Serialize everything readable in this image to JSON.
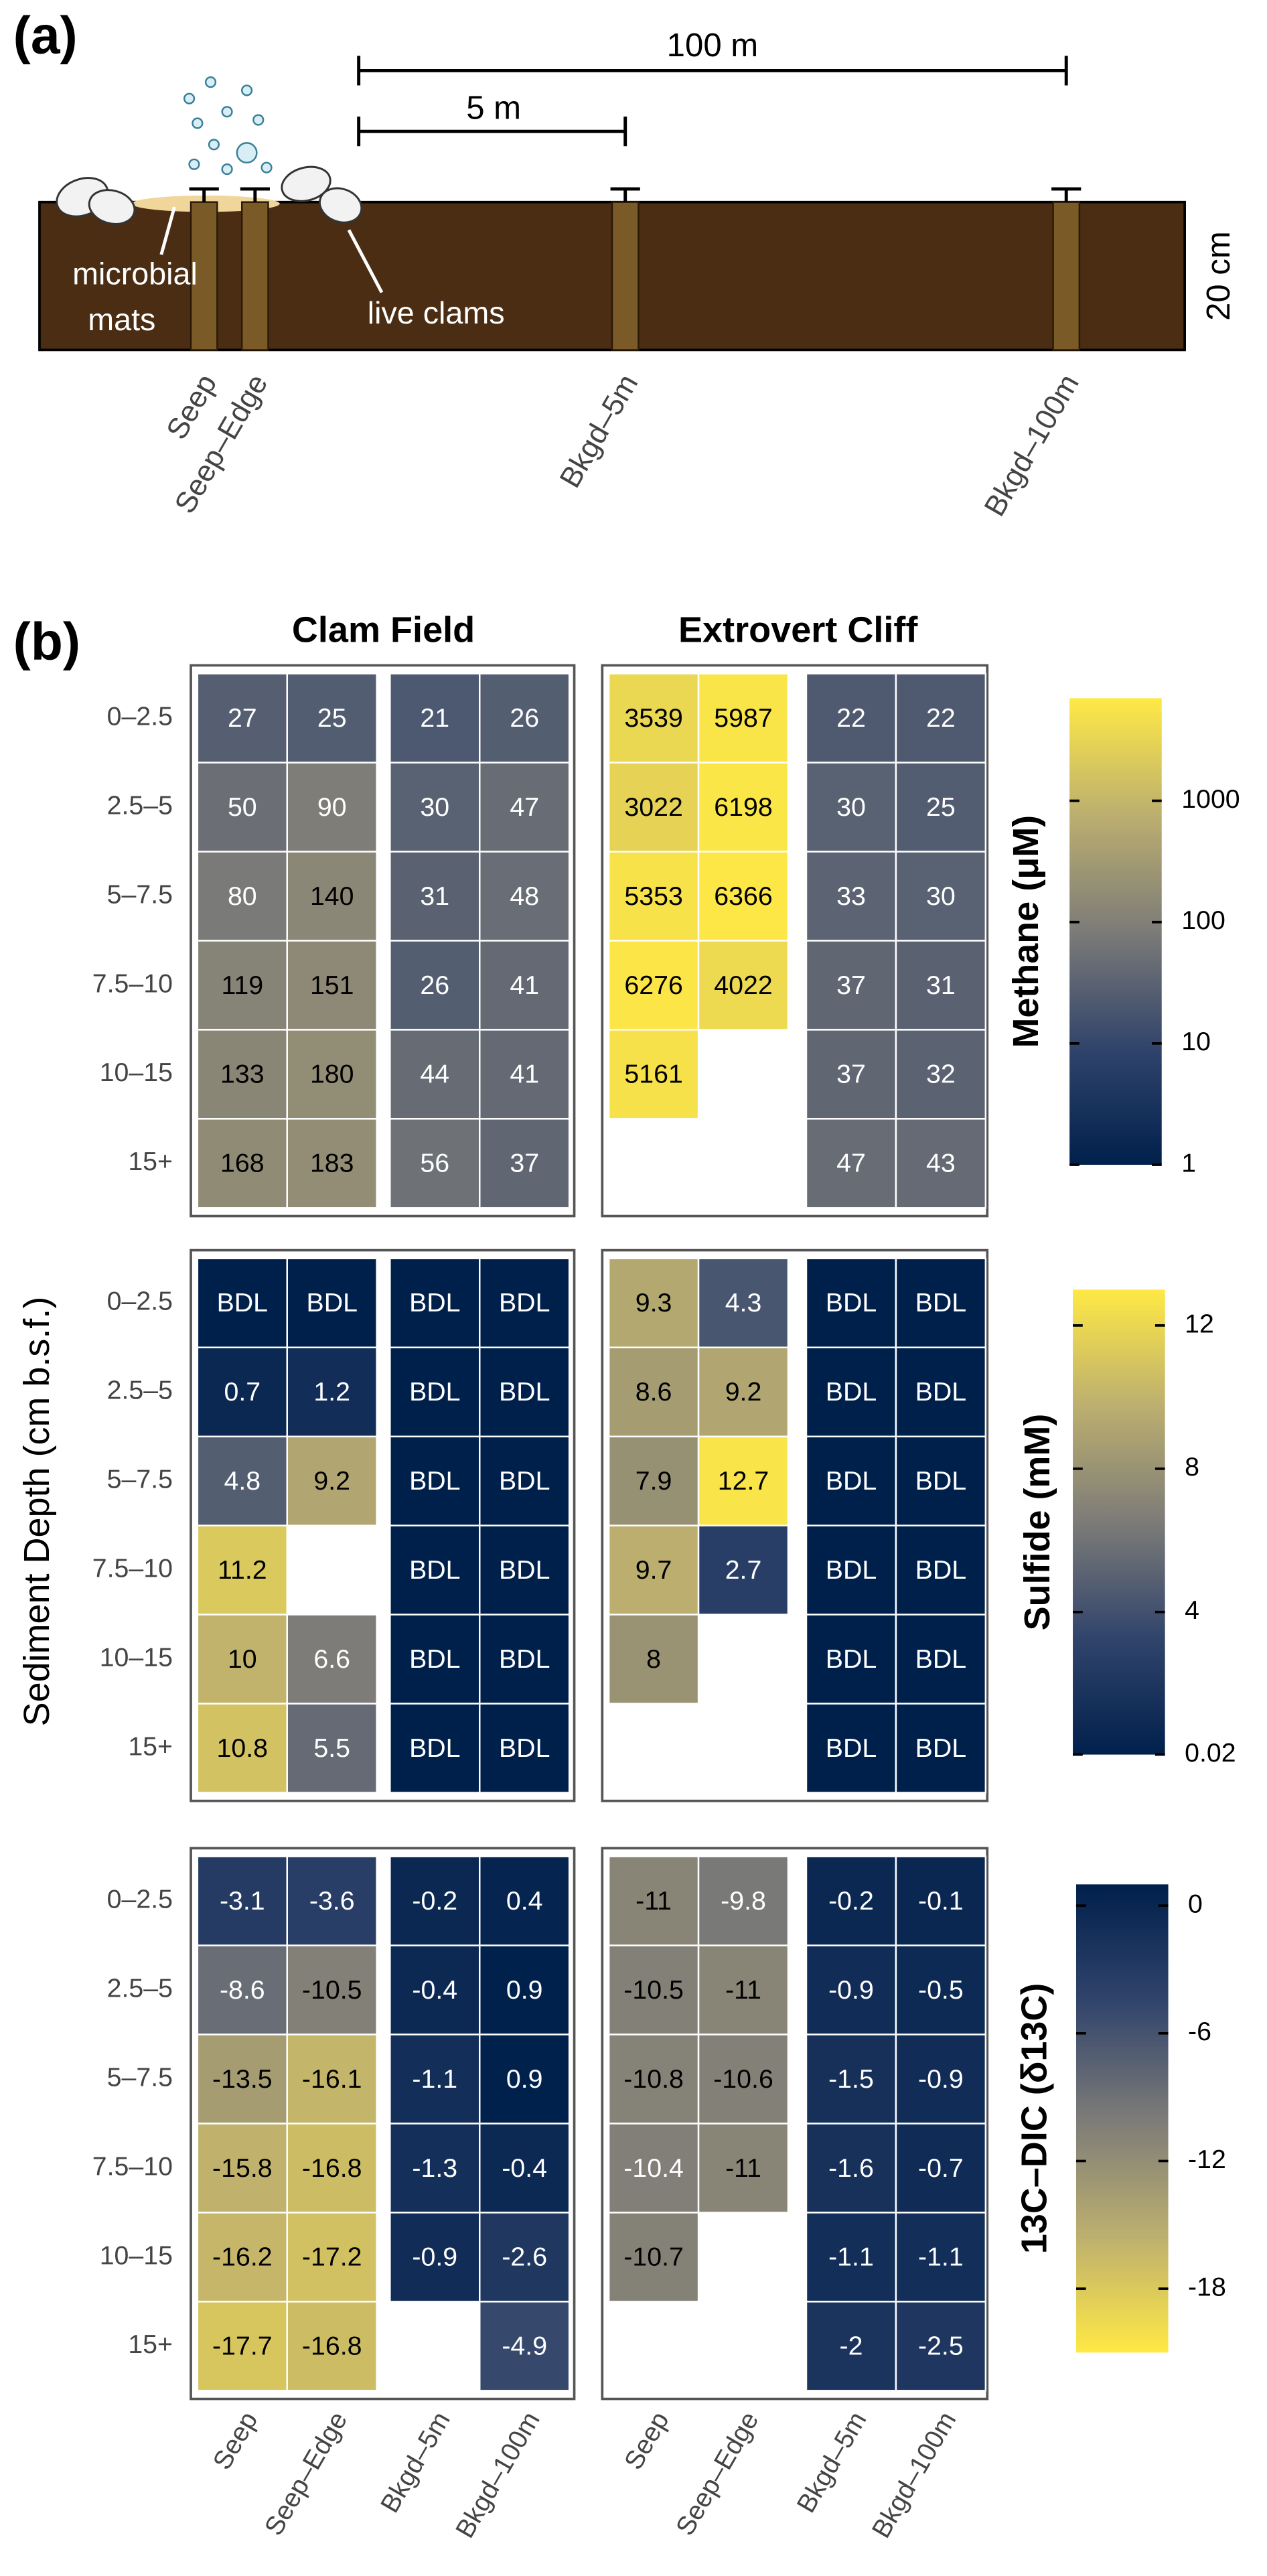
{
  "panel_a": {
    "label": "(a)",
    "scale_bars": [
      "100 m",
      "5 m"
    ],
    "depth": "20 cm",
    "mats": [
      "microbial",
      "mats"
    ],
    "clams": "live clams",
    "sites": [
      "Seep",
      "Seep–Edge",
      "Bkgd–5m",
      "Bkgd–100m"
    ]
  },
  "panel_b": {
    "label": "(b)",
    "y_label": "Sediment Depth (cm b.s.f.)",
    "groups": [
      "Clam Field",
      "Extrovert Cliff"
    ],
    "rows": [
      "0–2.5",
      "2.5–5",
      "5–7.5",
      "7.5–10",
      "10–15",
      "15+"
    ],
    "columns": [
      "Seep",
      "Seep–Edge",
      "Bkgd–5m",
      "Bkgd–100m"
    ]
  },
  "chart_data": [
    {
      "type": "heatmap",
      "colorbar_label": "Methane (μM)",
      "log_scale": true,
      "clim": [
        1,
        7000
      ],
      "cticks": [
        1,
        10,
        100,
        1000
      ],
      "colors": [
        "#00204c",
        "#31446b",
        "#7c7b78",
        "#bcaf6f",
        "#ffe945"
      ],
      "values": [
        [
          [
            27,
            25,
            21,
            26
          ],
          [
            50,
            90,
            30,
            47
          ],
          [
            80,
            140,
            31,
            48
          ],
          [
            119,
            151,
            26,
            41
          ],
          [
            133,
            180,
            44,
            41
          ],
          [
            168,
            183,
            56,
            37
          ]
        ],
        [
          [
            3539,
            5987,
            22,
            22
          ],
          [
            3022,
            6198,
            30,
            25
          ],
          [
            5353,
            6366,
            33,
            30
          ],
          [
            6276,
            4022,
            37,
            31
          ],
          [
            5161,
            null,
            37,
            32
          ],
          [
            null,
            null,
            47,
            43
          ]
        ]
      ]
    },
    {
      "type": "heatmap",
      "colorbar_label": "Sulfide (mM)",
      "log_scale": false,
      "clim": [
        0.02,
        13
      ],
      "cticks": [
        0.02,
        4,
        8,
        12
      ],
      "colors": [
        "#00204c",
        "#31446b",
        "#7c7b78",
        "#bcaf6f",
        "#ffe945"
      ],
      "values": [
        [
          [
            "BDL",
            "BDL",
            "BDL",
            "BDL"
          ],
          [
            0.7,
            1.2,
            "BDL",
            "BDL"
          ],
          [
            4.8,
            9.2,
            "BDL",
            "BDL"
          ],
          [
            11.2,
            null,
            "BDL",
            "BDL"
          ],
          [
            10,
            6.6,
            "BDL",
            "BDL"
          ],
          [
            10.8,
            5.5,
            "BDL",
            "BDL"
          ]
        ],
        [
          [
            9.3,
            4.3,
            "BDL",
            "BDL"
          ],
          [
            8.6,
            9.2,
            "BDL",
            "BDL"
          ],
          [
            7.9,
            12.7,
            "BDL",
            "BDL"
          ],
          [
            9.7,
            2.7,
            "BDL",
            "BDL"
          ],
          [
            8,
            null,
            "BDL",
            "BDL"
          ],
          [
            null,
            null,
            "BDL",
            "BDL"
          ]
        ]
      ]
    },
    {
      "type": "heatmap",
      "colorbar_label": "13C–DIC (δ13C)",
      "log_scale": false,
      "clim": [
        -21,
        1
      ],
      "cticks": [
        0,
        -6,
        -12,
        -18
      ],
      "colors": [
        "#ffe945",
        "#bcaf6f",
        "#7c7b78",
        "#31446b",
        "#00204c"
      ],
      "values": [
        [
          [
            -3.1,
            -3.6,
            -0.2,
            0.4
          ],
          [
            -8.6,
            -10.5,
            -0.4,
            0.9
          ],
          [
            -13.5,
            -16.1,
            -1.1,
            0.9
          ],
          [
            -15.8,
            -16.8,
            -1.3,
            -0.4
          ],
          [
            -16.2,
            -17.2,
            -0.9,
            -2.6
          ],
          [
            -17.7,
            -16.8,
            null,
            -4.9
          ]
        ],
        [
          [
            -11,
            -9.8,
            -0.2,
            -0.1
          ],
          [
            -10.5,
            -11,
            -0.9,
            -0.5
          ],
          [
            -10.8,
            -10.6,
            -1.5,
            -0.9
          ],
          [
            -10.4,
            -11,
            -1.6,
            -0.7
          ],
          [
            -10.7,
            null,
            -1.1,
            -1.1
          ],
          [
            null,
            null,
            -2,
            -2.5
          ]
        ]
      ]
    }
  ]
}
